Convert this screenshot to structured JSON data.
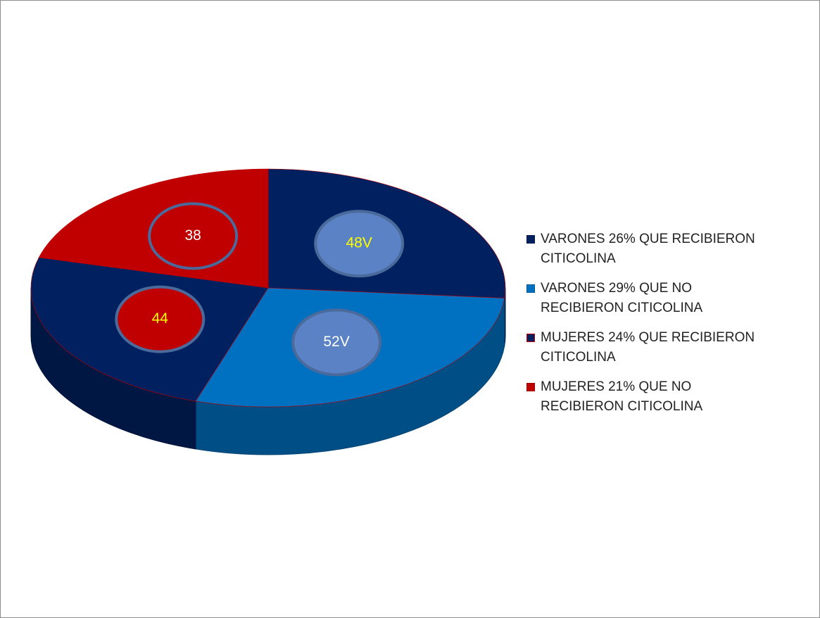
{
  "chart_data": {
    "type": "pie",
    "categories": [
      "VARONES 26% QUE RECIBIERON CITICOLINA",
      "VARONES 29% QUE NO RECIBIERON CITICOLINA",
      "MUJERES 24% QUE RECIBIERON CITICOLINA",
      "MUJERES 21% QUE NO RECIBIERON CITICOLINA"
    ],
    "values": [
      48,
      52,
      44,
      38
    ],
    "value_labels": [
      "48V",
      "52V",
      "44",
      "38"
    ],
    "colors": [
      "#002060",
      "#0070c0",
      "#002060",
      "#c00000"
    ],
    "label_colors": [
      "#ffff00",
      "#ffffff",
      "#ffff00",
      "#ffffff"
    ],
    "legend": "right"
  }
}
